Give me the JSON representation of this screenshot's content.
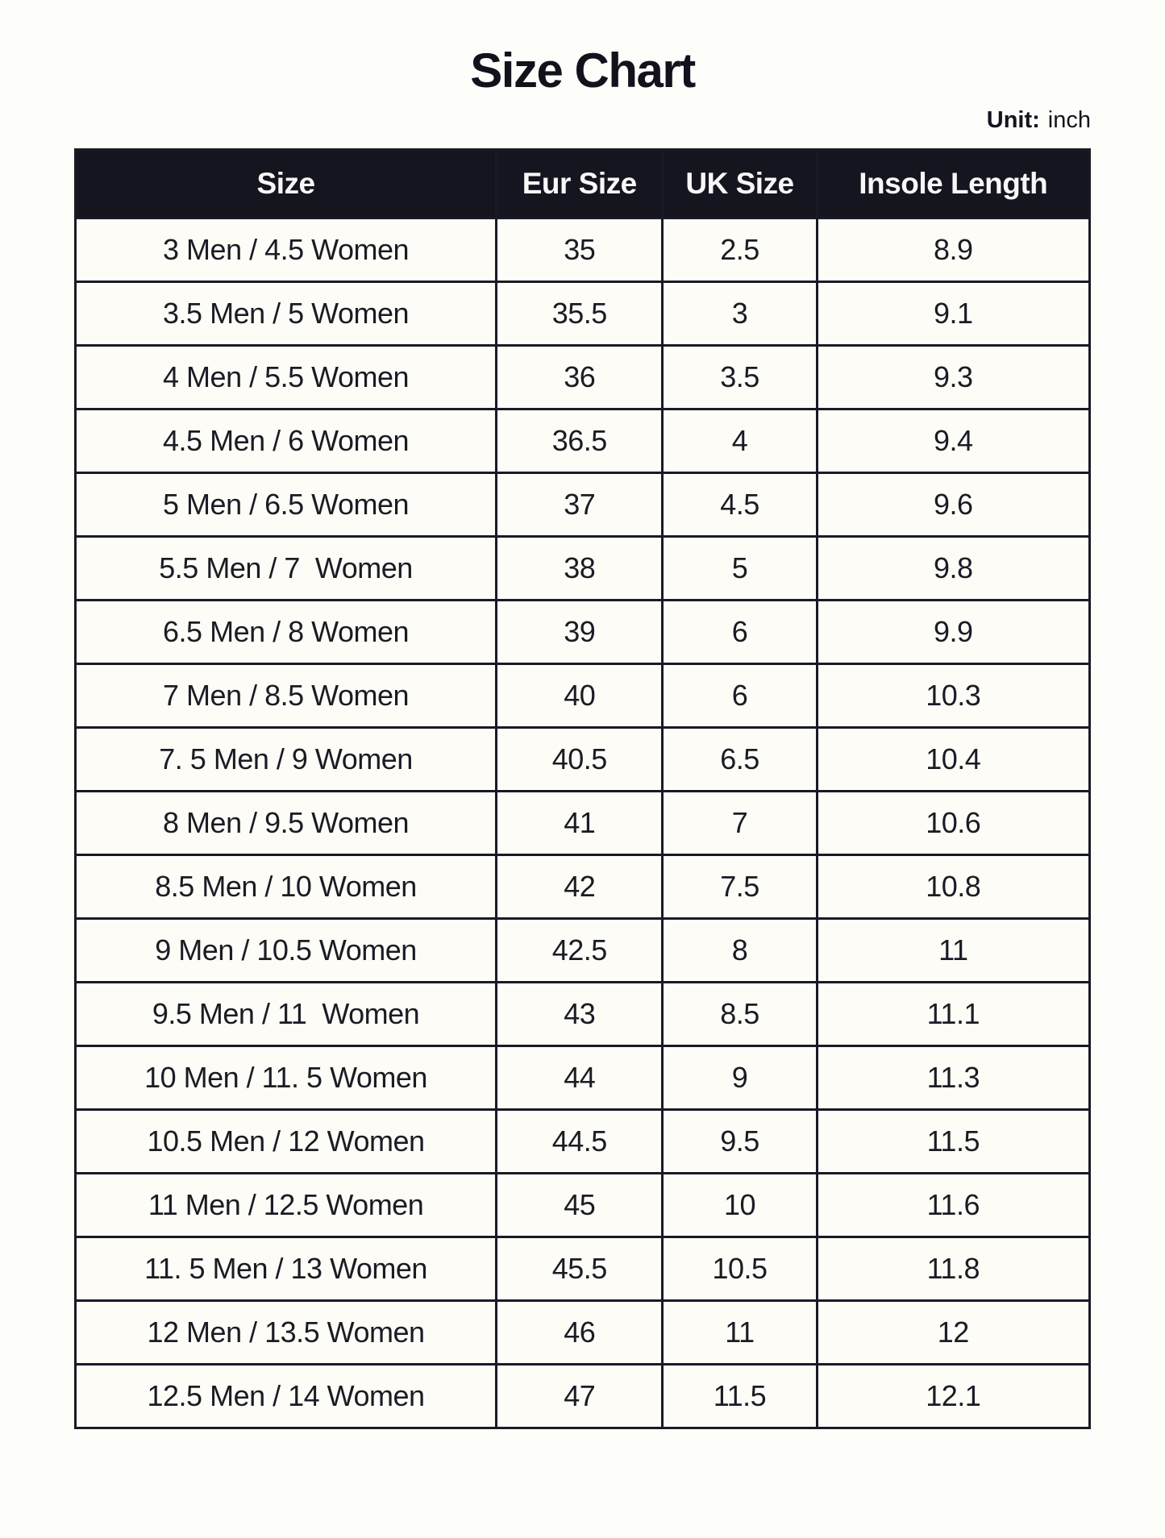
{
  "page": {
    "title": "Size Chart",
    "unit_label": "Unit:",
    "unit_value": "inch"
  },
  "colors": {
    "header_bg": "#15151f",
    "header_text": "#f7f7f7",
    "cell_bg": "#fdfcf7",
    "border": "#1a1a26",
    "title_text": "#12121d"
  },
  "chart_data": {
    "type": "table",
    "title": "Size Chart",
    "unit": "inch",
    "columns": [
      "Size",
      "Eur Size",
      "UK Size",
      "Insole Length"
    ],
    "rows": [
      [
        "3 Men / 4.5 Women",
        "35",
        "2.5",
        "8.9"
      ],
      [
        "3.5 Men / 5 Women",
        "35.5",
        "3",
        "9.1"
      ],
      [
        "4 Men / 5.5 Women",
        "36",
        "3.5",
        "9.3"
      ],
      [
        "4.5 Men / 6 Women",
        "36.5",
        "4",
        "9.4"
      ],
      [
        "5 Men / 6.5 Women",
        "37",
        "4.5",
        "9.6"
      ],
      [
        "5.5 Men / 7  Women",
        "38",
        "5",
        "9.8"
      ],
      [
        "6.5 Men / 8 Women",
        "39",
        "6",
        "9.9"
      ],
      [
        "7 Men / 8.5 Women",
        "40",
        "6",
        "10.3"
      ],
      [
        "7. 5 Men / 9 Women",
        "40.5",
        "6.5",
        "10.4"
      ],
      [
        "8 Men / 9.5 Women",
        "41",
        "7",
        "10.6"
      ],
      [
        "8.5 Men / 10 Women",
        "42",
        "7.5",
        "10.8"
      ],
      [
        "9 Men / 10.5 Women",
        "42.5",
        "8",
        "11"
      ],
      [
        "9.5 Men / 11  Women",
        "43",
        "8.5",
        "11.1"
      ],
      [
        "10 Men / 11. 5 Women",
        "44",
        "9",
        "11.3"
      ],
      [
        "10.5 Men / 12 Women",
        "44.5",
        "9.5",
        "11.5"
      ],
      [
        "11 Men / 12.5 Women",
        "45",
        "10",
        "11.6"
      ],
      [
        "11. 5 Men / 13 Women",
        "45.5",
        "10.5",
        "11.8"
      ],
      [
        "12 Men / 13.5 Women",
        "46",
        "11",
        "12"
      ],
      [
        "12.5 Men / 14 Women",
        "47",
        "11.5",
        "12.1"
      ]
    ]
  }
}
